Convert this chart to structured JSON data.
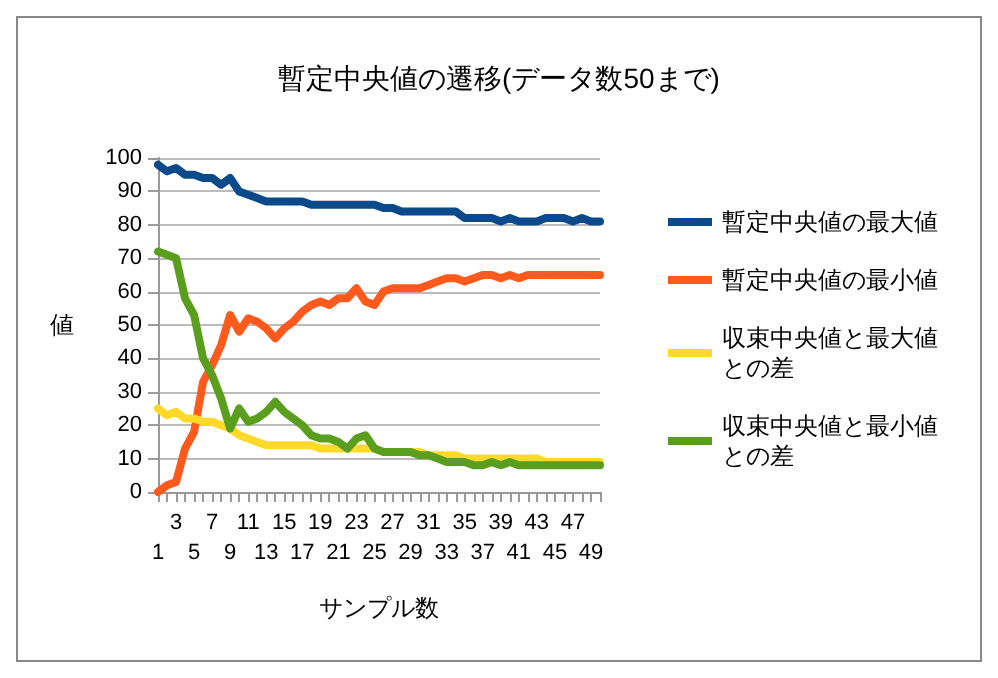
{
  "chart_data": {
    "type": "line",
    "title": "暫定中央値の遷移(データ数50まで)",
    "xlabel": "サンプル数",
    "ylabel": "値",
    "categories": [
      "1",
      null,
      "3",
      null,
      "5",
      null,
      "7",
      null,
      "9",
      null,
      "11",
      null,
      "13",
      null,
      "15",
      null,
      "17",
      null,
      "19",
      null,
      "21",
      null,
      "23",
      null,
      "25",
      null,
      "27",
      null,
      "29",
      null,
      "31",
      null,
      "33",
      null,
      "35",
      null,
      "37",
      null,
      "39",
      null,
      "41",
      null,
      "43",
      null,
      "45",
      null,
      "47",
      null,
      "49",
      null
    ],
    "series": [
      {
        "name": "暫定中央値の最大値",
        "color": "#0a4a8a",
        "values": [
          98,
          96,
          97,
          95,
          95,
          94,
          94,
          92,
          94,
          90,
          89,
          88,
          87,
          87,
          87,
          87,
          87,
          86,
          86,
          86,
          86,
          86,
          86,
          86,
          86,
          85,
          85,
          84,
          84,
          84,
          84,
          84,
          84,
          84,
          82,
          82,
          82,
          82,
          81,
          82,
          81,
          81,
          81,
          82,
          82,
          82,
          81,
          82,
          81,
          81
        ]
      },
      {
        "name": "暫定中央値の最小値",
        "color": "#ff5a1e",
        "values": [
          0,
          2,
          3,
          13,
          18,
          33,
          38,
          44,
          53,
          48,
          52,
          51,
          49,
          46,
          49,
          51,
          54,
          56,
          57,
          56,
          58,
          58,
          61,
          57,
          56,
          60,
          61,
          61,
          61,
          61,
          62,
          63,
          64,
          64,
          63,
          64,
          65,
          65,
          64,
          65,
          64,
          65,
          65,
          65,
          65,
          65,
          65,
          65,
          65,
          65
        ]
      },
      {
        "name": "収束中央値と最大値との差",
        "color": "#ffd92a",
        "values": [
          25,
          23,
          24,
          22,
          22,
          21,
          21,
          20,
          19,
          17,
          16,
          15,
          14,
          14,
          14,
          14,
          14,
          14,
          13,
          13,
          13,
          13,
          13,
          13,
          13,
          12,
          12,
          12,
          12,
          12,
          11,
          11,
          11,
          11,
          10,
          10,
          10,
          10,
          10,
          10,
          10,
          10,
          10,
          9,
          9,
          9,
          9,
          9,
          9,
          9
        ]
      },
      {
        "name": "収束中央値と最小値との差",
        "color": "#5a9e1e",
        "values": [
          72,
          71,
          70,
          58,
          53,
          40,
          35,
          28,
          19,
          25,
          21,
          22,
          24,
          27,
          24,
          22,
          20,
          17,
          16,
          16,
          15,
          13,
          16,
          17,
          13,
          12,
          12,
          12,
          12,
          11,
          11,
          10,
          9,
          9,
          9,
          8,
          8,
          9,
          8,
          9,
          8,
          8,
          8,
          8,
          8,
          8,
          8,
          8,
          8,
          8
        ]
      }
    ],
    "ylim": [
      0,
      100
    ],
    "yticks": [
      0,
      10,
      20,
      30,
      40,
      50,
      60,
      70,
      80,
      90,
      100
    ],
    "grid": "y",
    "legend": "right",
    "marker": "none",
    "line_style": "solid"
  }
}
